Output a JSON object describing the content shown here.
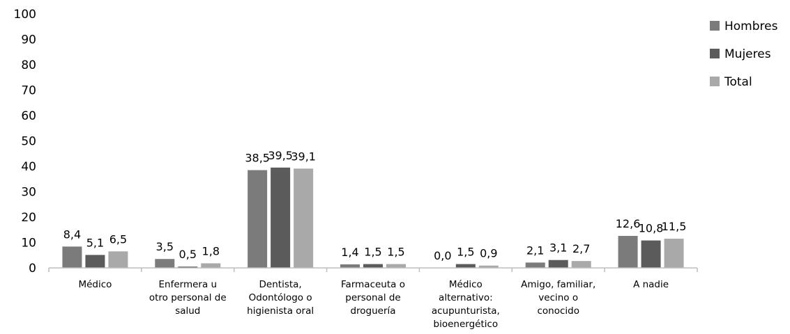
{
  "chart_data": {
    "type": "bar",
    "categories": [
      [
        "Médico"
      ],
      [
        "Enfermera u",
        "otro personal de",
        "salud"
      ],
      [
        "Dentista,",
        "Odontólogo o",
        "higienista oral"
      ],
      [
        "Farmaceuta o",
        "personal de",
        "droguería"
      ],
      [
        "Médico",
        "alternativo:",
        "acupunturista,",
        "bioenergético"
      ],
      [
        "Amigo, familiar,",
        "vecino o",
        "conocido"
      ],
      [
        "A nadie"
      ]
    ],
    "series": [
      {
        "name": "Hombres",
        "color": "#7b7b7b",
        "values": [
          8.4,
          3.5,
          38.5,
          1.4,
          0.0,
          2.1,
          12.6
        ],
        "labels": [
          "8,4",
          "3,5",
          "38,5",
          "1,4",
          "0,0",
          "2,1",
          "12,6"
        ]
      },
      {
        "name": "Mujeres",
        "color": "#5b5b5b",
        "values": [
          5.1,
          0.5,
          39.5,
          1.5,
          1.5,
          3.1,
          10.8
        ],
        "labels": [
          "5,1",
          "0,5",
          "39,5",
          "1,5",
          "1,5",
          "3,1",
          "10,8"
        ]
      },
      {
        "name": "Total",
        "color": "#a9a9a9",
        "values": [
          6.5,
          1.8,
          39.1,
          1.5,
          0.9,
          2.7,
          11.5
        ],
        "labels": [
          "6,5",
          "1,8",
          "39,1",
          "1,5",
          "0,9",
          "2,7",
          "11,5"
        ]
      }
    ],
    "yticks": [
      "0",
      "10",
      "20",
      "30",
      "40",
      "50",
      "60",
      "70",
      "80",
      "90",
      "100"
    ],
    "ylim": [
      0,
      100
    ],
    "grid": false,
    "legend_position": "top-right",
    "title": "",
    "xlabel": "",
    "ylabel": ""
  }
}
